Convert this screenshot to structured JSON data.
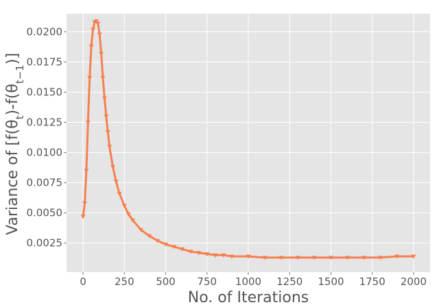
{
  "chart_data": {
    "type": "line",
    "title": "",
    "xlabel": "No. of Iterations",
    "ylabel": "Variance of [f(θ",
    "ylabel_sub1": "t",
    "ylabel_mid": ")-f(θ",
    "ylabel_sub2": "t−1",
    "ylabel_end": ")]",
    "xlim": [
      -100,
      2100
    ],
    "ylim": [
      0.0001,
      0.0215
    ],
    "xticks": [
      0,
      250,
      500,
      750,
      1000,
      1250,
      1500,
      1750,
      2000
    ],
    "xtick_labels": [
      "0",
      "250",
      "500",
      "750",
      "1000",
      "1250",
      "1500",
      "1750",
      "2000"
    ],
    "yticks": [
      0.0025,
      0.005,
      0.0075,
      0.01,
      0.0125,
      0.015,
      0.0175,
      0.02
    ],
    "ytick_labels": [
      "0.0025",
      "0.0050",
      "0.0075",
      "0.0100",
      "0.0125",
      "0.0150",
      "0.0175",
      "0.0200"
    ],
    "grid": true,
    "series": [
      {
        "color": "#f5804f",
        "marker": "triangle-down",
        "x": [
          0,
          10,
          20,
          30,
          40,
          50,
          60,
          70,
          80,
          90,
          100,
          110,
          120,
          130,
          140,
          150,
          160,
          180,
          200,
          220,
          250,
          275,
          300,
          350,
          400,
          450,
          500,
          550,
          600,
          650,
          700,
          750,
          800,
          850,
          900,
          1000,
          1100,
          1200,
          1300,
          1400,
          1500,
          1600,
          1700,
          1800,
          1900,
          2000
        ],
        "y": [
          0.0047,
          0.0058,
          0.0085,
          0.0125,
          0.0162,
          0.0188,
          0.0202,
          0.0208,
          0.0209,
          0.0207,
          0.0198,
          0.0182,
          0.0162,
          0.0145,
          0.013,
          0.0117,
          0.0105,
          0.0088,
          0.0076,
          0.0066,
          0.0056,
          0.0049,
          0.0044,
          0.0036,
          0.0031,
          0.0027,
          0.0024,
          0.0022,
          0.002,
          0.0018,
          0.0017,
          0.0016,
          0.0015,
          0.0015,
          0.0014,
          0.0014,
          0.0013,
          0.0013,
          0.0013,
          0.0013,
          0.0013,
          0.0013,
          0.0013,
          0.0013,
          0.0014,
          0.0014
        ]
      }
    ]
  }
}
